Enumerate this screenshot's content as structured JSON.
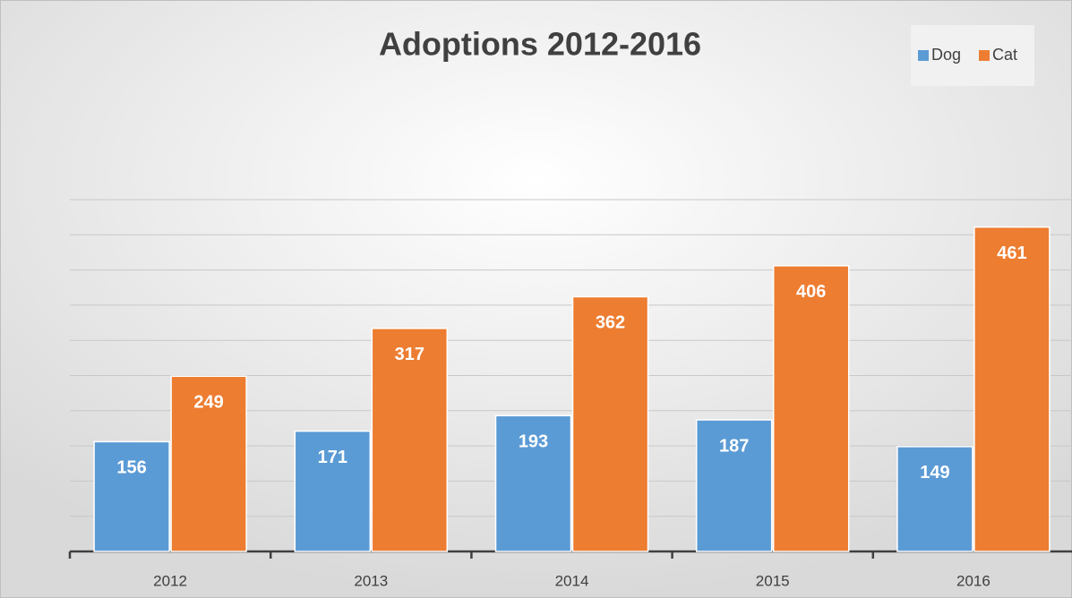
{
  "chart_data": {
    "type": "bar",
    "title": "Adoptions 2012-2016",
    "categories": [
      "2012",
      "2013",
      "2014",
      "2015",
      "2016"
    ],
    "series": [
      {
        "name": "Dog",
        "color": "#5b9bd5",
        "values": [
          156,
          171,
          193,
          187,
          149
        ]
      },
      {
        "name": "Cat",
        "color": "#ed7d31",
        "values": [
          249,
          317,
          362,
          406,
          461
        ]
      }
    ],
    "ylim": [
      0,
      500
    ],
    "yticks": [
      0,
      50,
      100,
      150,
      200,
      250,
      300,
      350,
      400,
      450,
      500
    ],
    "grid": true,
    "legend": "top-right"
  }
}
